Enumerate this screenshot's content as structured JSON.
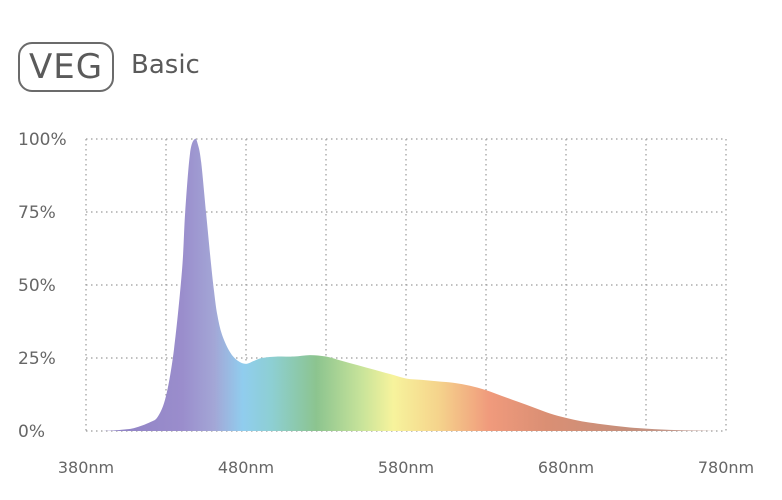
{
  "header": {
    "badge_label": "VEG",
    "subtitle": "Basic"
  },
  "chart_data": {
    "type": "area",
    "title": "",
    "xlabel": "",
    "ylabel": "",
    "x_ticks": [
      "380nm",
      "480nm",
      "580nm",
      "680nm",
      "780nm"
    ],
    "x_tick_values": [
      380,
      480,
      580,
      680,
      780
    ],
    "y_ticks": [
      "0%",
      "25%",
      "50%",
      "75%",
      "100%"
    ],
    "y_tick_values": [
      0,
      25,
      50,
      75,
      100
    ],
    "xlim": [
      380,
      780
    ],
    "ylim": [
      0,
      100
    ],
    "grid": true,
    "grid_style": "dotted",
    "fill": "spectrum gradient (violet → blue → green → yellow → orange → red-brown)",
    "series": [
      {
        "x": [
          390,
          400,
          410,
          420,
          425,
          430,
          435,
          440,
          442,
          445,
          448,
          450,
          452,
          455,
          458,
          460,
          462,
          465,
          470,
          475,
          480,
          485,
          490,
          500,
          510,
          520,
          530,
          540,
          550,
          560,
          570,
          580,
          590,
          600,
          610,
          620,
          630,
          640,
          650,
          660,
          670,
          680,
          690,
          700,
          710,
          720,
          730,
          740,
          750,
          760,
          770,
          780
        ],
        "y": [
          0,
          0.3,
          1,
          3,
          5,
          12,
          28,
          55,
          75,
          95,
          100,
          98,
          92,
          75,
          58,
          48,
          40,
          33,
          27,
          24,
          23,
          24,
          25,
          25.5,
          25.5,
          26,
          25.5,
          24,
          22.5,
          21,
          19.5,
          18,
          17.5,
          17,
          16.5,
          15.5,
          14,
          12,
          10,
          8,
          6,
          4.5,
          3.3,
          2.5,
          1.8,
          1.2,
          0.8,
          0.5,
          0.3,
          0.15,
          0.05,
          0
        ]
      }
    ]
  }
}
